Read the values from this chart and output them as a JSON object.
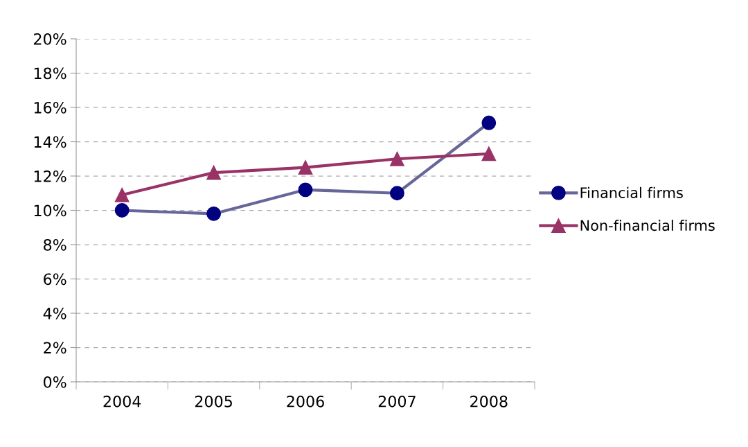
{
  "chart_data": {
    "type": "line",
    "categories": [
      "2004",
      "2005",
      "2006",
      "2007",
      "2008"
    ],
    "series": [
      {
        "name": "Financial firms",
        "color": "#666699",
        "marker": "circle",
        "values": [
          10.0,
          9.8,
          11.2,
          11.0,
          15.1
        ]
      },
      {
        "name": "Non-financial firms",
        "color": "#993366",
        "marker": "triangle",
        "values": [
          10.9,
          12.2,
          12.5,
          13.0,
          13.3
        ]
      }
    ],
    "ylim": [
      0,
      20
    ],
    "yticks": [
      {
        "value": 0,
        "label": "0%"
      },
      {
        "value": 2,
        "label": "2%"
      },
      {
        "value": 4,
        "label": "4%"
      },
      {
        "value": 6,
        "label": "6%"
      },
      {
        "value": 8,
        "label": "8%"
      },
      {
        "value": 10,
        "label": "10%"
      },
      {
        "value": 12,
        "label": "12%"
      },
      {
        "value": 14,
        "label": "14%"
      },
      {
        "value": 16,
        "label": "16%"
      },
      {
        "value": 18,
        "label": "18%"
      },
      {
        "value": 20,
        "label": "20%"
      }
    ],
    "grid": "y",
    "legend": "right",
    "line_style": "solid"
  }
}
